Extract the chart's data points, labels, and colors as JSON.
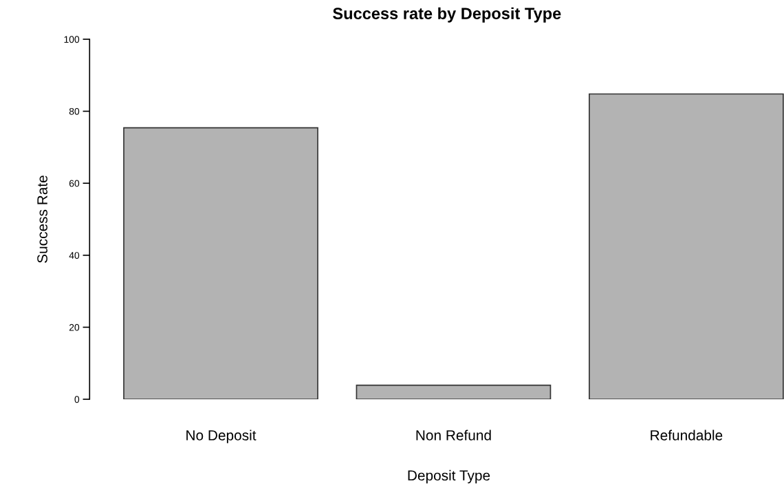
{
  "chart_data": {
    "type": "bar",
    "title": "Success rate by Deposit Type",
    "xlabel": "Deposit Type",
    "ylabel": "Success Rate",
    "categories": [
      "No Deposit",
      "Non Refund",
      "Refundable"
    ],
    "values": [
      75.4,
      3.9,
      84.8
    ],
    "color": "#b3b3b3",
    "ylim": [
      0,
      100
    ],
    "yticks": [
      0,
      20,
      40,
      60,
      80,
      100
    ],
    "grid": false,
    "legend": false
  }
}
